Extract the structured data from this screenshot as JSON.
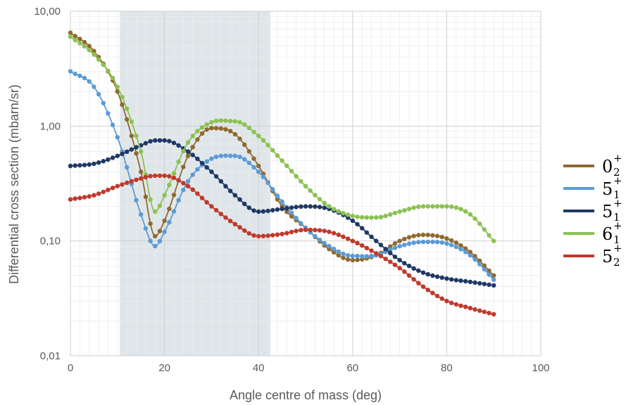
{
  "chart_data": {
    "type": "line",
    "title": "",
    "xlabel": "Angle centre of mass (deg)",
    "ylabel": "Differential cross section (mbarn/sr)",
    "xlim": [
      0,
      100
    ],
    "ylim": [
      0.01,
      10
    ],
    "yscale": "log",
    "x_ticks": [
      "0",
      "20",
      "40",
      "60",
      "80",
      "100"
    ],
    "y_ticks": [
      "0,01",
      "0,10",
      "1,00",
      "10,00"
    ],
    "grid": true,
    "shaded_region": {
      "x_from": 10.5,
      "x_to": 42.5,
      "color": "#dfe6ea"
    },
    "legend_position": "right",
    "x": [
      0,
      5,
      10,
      15,
      18,
      20,
      25,
      30,
      35,
      40,
      45,
      50,
      55,
      60,
      65,
      70,
      75,
      80,
      85,
      90
    ],
    "series": [
      {
        "name": "0",
        "sup": "+",
        "sub": "2",
        "color": "#8e6a2f",
        "values": [
          6.5,
          4.5,
          2.0,
          0.4,
          0.11,
          0.15,
          0.55,
          0.96,
          0.85,
          0.45,
          0.2,
          0.13,
          0.085,
          0.068,
          0.075,
          0.1,
          0.113,
          0.105,
          0.08,
          0.05
        ]
      },
      {
        "name": "5",
        "sup": "+",
        "sub": "1",
        "color": "#5b9bd5",
        "values": [
          3.0,
          2.2,
          0.8,
          0.17,
          0.09,
          0.12,
          0.33,
          0.52,
          0.55,
          0.4,
          0.22,
          0.13,
          0.09,
          0.074,
          0.075,
          0.09,
          0.098,
          0.095,
          0.075,
          0.046
        ]
      },
      {
        "name": "5",
        "sup": "+",
        "sub": "1",
        "color": "#1f3864",
        "values": [
          0.45,
          0.47,
          0.55,
          0.68,
          0.75,
          0.75,
          0.6,
          0.4,
          0.25,
          0.18,
          0.19,
          0.2,
          0.19,
          0.15,
          0.1,
          0.068,
          0.053,
          0.047,
          0.044,
          0.041
        ]
      },
      {
        "name": "6",
        "sup": "+",
        "sub": "1",
        "color": "#8cc152",
        "values": [
          6.0,
          4.2,
          2.2,
          0.6,
          0.18,
          0.25,
          0.72,
          1.08,
          1.1,
          0.82,
          0.5,
          0.3,
          0.2,
          0.165,
          0.16,
          0.18,
          0.2,
          0.2,
          0.17,
          0.1
        ]
      },
      {
        "name": "5",
        "sup": "+",
        "sub": "2",
        "color": "#c0392b",
        "values": [
          0.23,
          0.25,
          0.3,
          0.35,
          0.37,
          0.37,
          0.3,
          0.2,
          0.14,
          0.11,
          0.115,
          0.125,
          0.12,
          0.1,
          0.078,
          0.058,
          0.04,
          0.03,
          0.026,
          0.023
        ]
      }
    ]
  }
}
